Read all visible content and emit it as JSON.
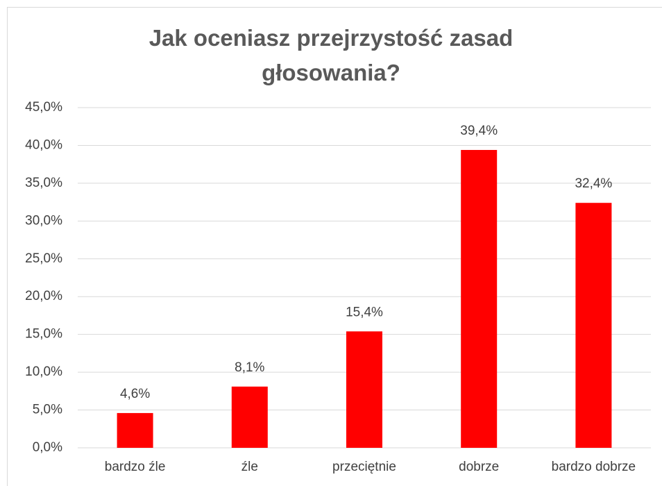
{
  "chart_data": {
    "type": "bar",
    "title": "Jak oceniasz przejrzystość zasad głosowania?",
    "categories": [
      "bardzo źle",
      "źle",
      "przeciętnie",
      "dobrze",
      "bardzo dobrze"
    ],
    "values": [
      4.6,
      8.1,
      15.4,
      39.4,
      32.4
    ],
    "value_labels": [
      "4,6%",
      "8,1%",
      "15,4%",
      "39,4%",
      "32,4%"
    ],
    "color": "#ff0000",
    "ylim": [
      0,
      45
    ],
    "yticks": [
      {
        "value": 0,
        "label": "0,0%"
      },
      {
        "value": 5,
        "label": "5,0%"
      },
      {
        "value": 10,
        "label": "10,0%"
      },
      {
        "value": 15,
        "label": "15,0%"
      },
      {
        "value": 20,
        "label": "20,0%"
      },
      {
        "value": 25,
        "label": "25,0%"
      },
      {
        "value": 30,
        "label": "30,0%"
      },
      {
        "value": 35,
        "label": "35,0%"
      },
      {
        "value": 40,
        "label": "40,0%"
      },
      {
        "value": 45,
        "label": "45,0%"
      }
    ],
    "grid": true
  }
}
